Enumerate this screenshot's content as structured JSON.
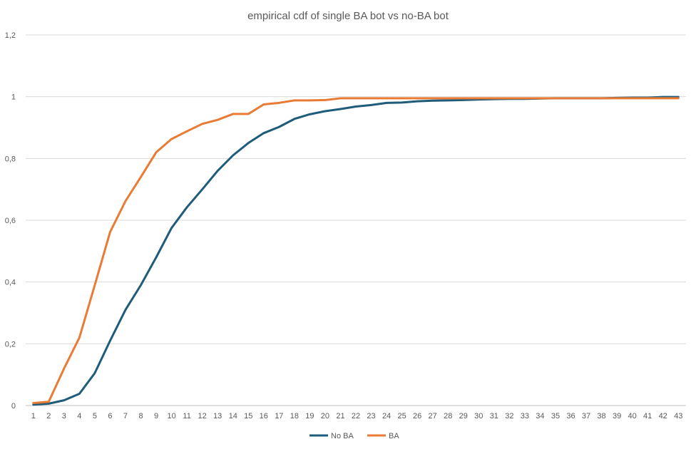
{
  "chart_data": {
    "type": "line",
    "title": "empirical cdf of single BA bot vs no-BA bot",
    "xlabel": "",
    "ylabel": "",
    "x": [
      1,
      2,
      3,
      4,
      5,
      6,
      7,
      8,
      9,
      10,
      11,
      12,
      13,
      14,
      15,
      16,
      17,
      18,
      19,
      20,
      21,
      22,
      23,
      24,
      25,
      26,
      27,
      28,
      29,
      30,
      31,
      32,
      33,
      34,
      35,
      36,
      37,
      38,
      39,
      40,
      41,
      42,
      43
    ],
    "ylim": [
      0,
      1.2
    ],
    "yticks": [
      0,
      0.2,
      0.4,
      0.6,
      0.8,
      1,
      1.2
    ],
    "ytick_labels": [
      "0",
      "0,2",
      "0,4",
      "0,6",
      "0,8",
      "1",
      "1,2"
    ],
    "grid": true,
    "legend_position": "bottom",
    "series": [
      {
        "name": "No BA",
        "color": "#1f5c7a",
        "values": [
          0.003,
          0.006,
          0.017,
          0.038,
          0.105,
          0.21,
          0.31,
          0.39,
          0.48,
          0.575,
          0.642,
          0.7,
          0.76,
          0.81,
          0.85,
          0.882,
          0.902,
          0.928,
          0.943,
          0.953,
          0.96,
          0.968,
          0.973,
          0.98,
          0.981,
          0.985,
          0.987,
          0.988,
          0.989,
          0.991,
          0.992,
          0.993,
          0.993,
          0.994,
          0.995,
          0.995,
          0.995,
          0.995,
          0.996,
          0.997,
          0.997,
          0.999,
          0.999
        ]
      },
      {
        "name": "BA",
        "color": "#e97b35",
        "values": [
          0.008,
          0.012,
          0.12,
          0.22,
          0.39,
          0.562,
          0.662,
          0.74,
          0.82,
          0.863,
          0.888,
          0.912,
          0.925,
          0.944,
          0.944,
          0.975,
          0.98,
          0.988,
          0.988,
          0.989,
          0.995,
          0.995,
          0.995,
          0.995,
          0.995,
          0.995,
          0.995,
          0.995,
          0.995,
          0.995,
          0.995,
          0.995,
          0.995,
          0.995,
          0.995,
          0.995,
          0.995,
          0.995,
          0.995,
          0.995,
          0.995,
          0.995,
          0.995
        ]
      }
    ]
  }
}
